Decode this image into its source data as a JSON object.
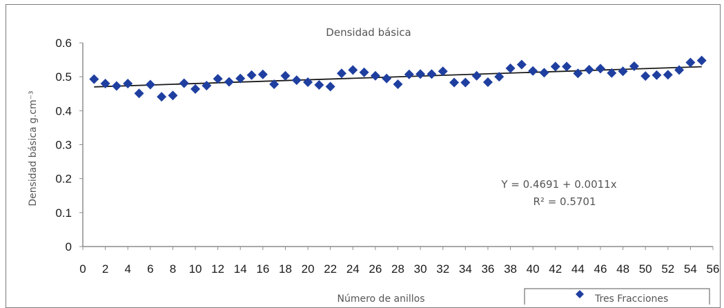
{
  "chart_data": {
    "type": "scatter",
    "title": "Densidad  básica",
    "xlabel": "Número de anillos",
    "ylabel": "Densidad básica g.cm⁻³",
    "xlim": [
      0,
      56
    ],
    "ylim": [
      0,
      0.6
    ],
    "x_ticks": [
      "0",
      "2",
      "4",
      "6",
      "8",
      "10",
      "12",
      "14",
      "16",
      "18",
      "20",
      "22",
      "24",
      "26",
      "28",
      "30",
      "32",
      "34",
      "36",
      "38",
      "40",
      "42",
      "44",
      "46",
      "48",
      "50",
      "52",
      "54",
      "56"
    ],
    "y_ticks": [
      "0",
      "0.1",
      "0.2",
      "0.3",
      "0.4",
      "0.5",
      "0.6"
    ],
    "grid": false,
    "legend_position": "bottom-right",
    "series": [
      {
        "name": "Tres Fracciones",
        "marker": "diamond",
        "color": "#1f3fa0",
        "x": [
          1,
          2,
          3,
          4,
          5,
          6,
          7,
          8,
          9,
          10,
          11,
          12,
          13,
          14,
          15,
          16,
          17,
          18,
          19,
          20,
          21,
          22,
          23,
          24,
          25,
          26,
          27,
          28,
          29,
          30,
          31,
          32,
          33,
          34,
          35,
          36,
          37,
          38,
          39,
          40,
          41,
          42,
          43,
          44,
          45,
          46,
          47,
          48,
          49,
          50,
          51,
          52,
          53,
          54,
          55
        ],
        "y": [
          0.493,
          0.48,
          0.473,
          0.48,
          0.451,
          0.477,
          0.441,
          0.445,
          0.481,
          0.464,
          0.474,
          0.494,
          0.485,
          0.495,
          0.505,
          0.507,
          0.478,
          0.503,
          0.49,
          0.484,
          0.476,
          0.471,
          0.51,
          0.52,
          0.513,
          0.503,
          0.495,
          0.478,
          0.507,
          0.508,
          0.508,
          0.516,
          0.483,
          0.483,
          0.503,
          0.484,
          0.5,
          0.525,
          0.536,
          0.517,
          0.512,
          0.53,
          0.53,
          0.51,
          0.521,
          0.524,
          0.511,
          0.516,
          0.531,
          0.502,
          0.505,
          0.506,
          0.52,
          0.542,
          0.548
        ]
      }
    ],
    "trendline": {
      "type": "linear",
      "intercept": 0.4691,
      "slope": 0.0011,
      "color": "#1a1a1a"
    },
    "annotations": {
      "equation": "Y = 0.4691  + 0.0011x",
      "r_squared": "R² = 0.5701"
    }
  }
}
